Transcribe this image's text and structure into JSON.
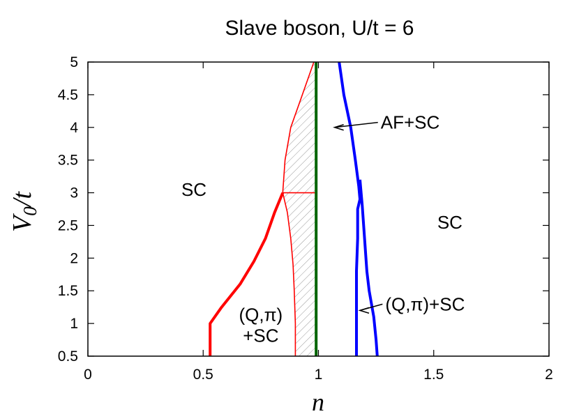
{
  "chart_data": {
    "type": "line",
    "title": "Slave boson, U/t = 6",
    "xlabel": "n",
    "ylabel": {
      "base": "V",
      "sub": "0",
      "rest": "/t"
    },
    "xlim": [
      0,
      2
    ],
    "ylim": [
      0.5,
      5
    ],
    "x_ticks": [
      "0",
      "0.5",
      "1",
      "1.5",
      "2"
    ],
    "y_ticks": [
      "0.5",
      "1",
      "1.5",
      "2",
      "2.5",
      "3",
      "3.5",
      "4",
      "4.5",
      "5"
    ],
    "grid": false,
    "series": [
      {
        "color": "#ff0000",
        "width": "thick",
        "points": [
          [
            0.53,
            0.5
          ],
          [
            0.53,
            1.0
          ],
          [
            0.58,
            1.25
          ],
          [
            0.66,
            1.6
          ],
          [
            0.72,
            1.95
          ],
          [
            0.77,
            2.3
          ],
          [
            0.81,
            2.7
          ],
          [
            0.845,
            3.0
          ]
        ]
      },
      {
        "color": "#ff0000",
        "width": "thin",
        "points": [
          [
            0.9,
            0.5
          ],
          [
            0.9,
            1.0
          ],
          [
            0.895,
            1.5
          ],
          [
            0.89,
            1.9
          ],
          [
            0.88,
            2.3
          ],
          [
            0.865,
            2.7
          ],
          [
            0.845,
            3.0
          ],
          [
            0.855,
            3.5
          ],
          [
            0.88,
            4.0
          ],
          [
            0.92,
            4.4
          ],
          [
            0.96,
            4.8
          ],
          [
            0.98,
            5.0
          ]
        ]
      },
      {
        "color": "#ff0000",
        "width": "thin",
        "points": [
          [
            0.845,
            3.0
          ],
          [
            0.99,
            3.0
          ]
        ]
      },
      {
        "color": "#006400",
        "width": "thick",
        "points": [
          [
            0.99,
            0.5
          ],
          [
            0.99,
            5.0
          ]
        ]
      },
      {
        "color": "#0000ff",
        "width": "thick",
        "points": [
          [
            1.09,
            5.0
          ],
          [
            1.11,
            4.5
          ],
          [
            1.14,
            4.0
          ],
          [
            1.16,
            3.5
          ],
          [
            1.175,
            3.1
          ],
          [
            1.18,
            2.9
          ],
          [
            1.17,
            2.75
          ],
          [
            1.17,
            2.3
          ],
          [
            1.165,
            1.8
          ],
          [
            1.165,
            1.3
          ],
          [
            1.165,
            0.5
          ]
        ]
      },
      {
        "color": "#0000ff",
        "width": "thick",
        "points": [
          [
            1.18,
            3.2
          ],
          [
            1.19,
            2.8
          ],
          [
            1.2,
            2.3
          ],
          [
            1.21,
            1.8
          ],
          [
            1.22,
            1.5
          ],
          [
            1.24,
            1.1
          ],
          [
            1.25,
            0.75
          ],
          [
            1.255,
            0.5
          ]
        ]
      }
    ],
    "hatched_region": {
      "color": "#999999",
      "polygon": [
        [
          0.9,
          0.5
        ],
        [
          0.9,
          1.0
        ],
        [
          0.895,
          1.5
        ],
        [
          0.89,
          1.9
        ],
        [
          0.88,
          2.3
        ],
        [
          0.865,
          2.7
        ],
        [
          0.845,
          3.0
        ],
        [
          0.855,
          3.5
        ],
        [
          0.88,
          4.0
        ],
        [
          0.92,
          4.4
        ],
        [
          0.96,
          4.8
        ],
        [
          0.98,
          5.0
        ],
        [
          0.99,
          5.0
        ],
        [
          0.99,
          0.5
        ]
      ]
    },
    "annotations": [
      {
        "lines": [
          "SC"
        ],
        "x": 0.46,
        "y": 2.95
      },
      {
        "lines": [
          "SC"
        ],
        "x": 1.57,
        "y": 2.45
      },
      {
        "lines": [
          "(Q,π)",
          "+SC"
        ],
        "x": 0.75,
        "y": 1.04
      },
      {
        "lines": [
          "AF+SC"
        ],
        "x": 1.27,
        "y": 3.98,
        "arrow_to": [
          1.07,
          4.0
        ]
      },
      {
        "lines": [
          "(Q,π)+SC"
        ],
        "x": 1.29,
        "y": 1.2,
        "arrow_to": [
          1.18,
          1.2
        ]
      }
    ]
  }
}
